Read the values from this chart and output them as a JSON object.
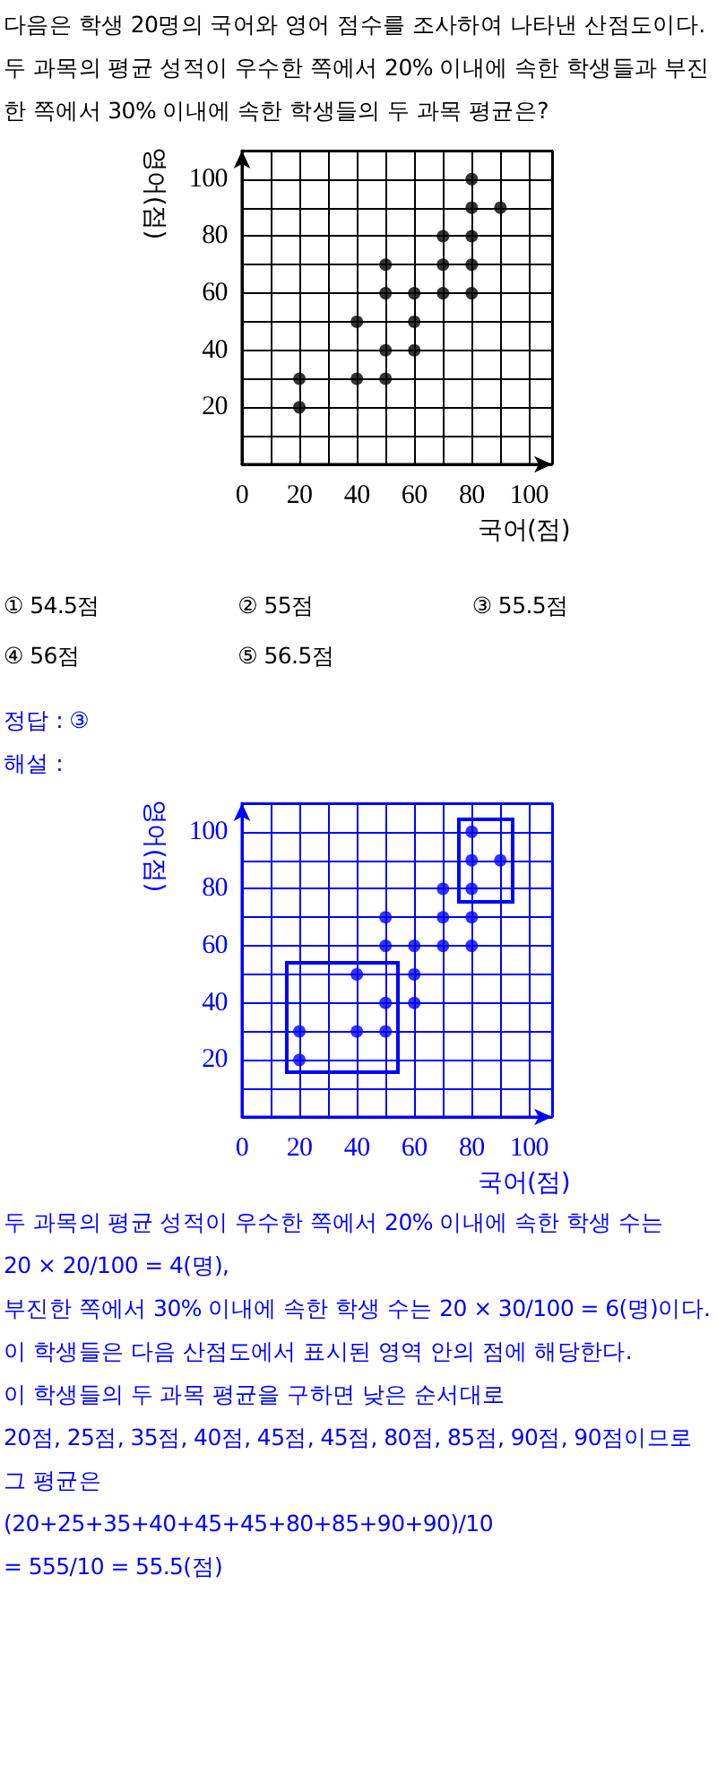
{
  "chart_data": [
    {
      "type": "scatter",
      "title": "다음은 학생 20명의 국어와 영어 점수를 조사하여 나타낸 산점도이다. 두 과목의 평균 성적이 우수한 쪽에서 20% 이내에 속한 학생들과 부진한 쪽에서 30% 이내에 속한 학생들의 두 과목 평균은?",
      "xlabel": "국어(점)",
      "ylabel": "영어(점)",
      "x": [
        20,
        20,
        40,
        40,
        50,
        50,
        50,
        50,
        60,
        60,
        60,
        70,
        70,
        70,
        80,
        80,
        80,
        80,
        80,
        90
      ],
      "values": [
        20,
        30,
        30,
        50,
        30,
        40,
        60,
        70,
        40,
        50,
        60,
        60,
        70,
        80,
        60,
        70,
        80,
        90,
        100,
        90
      ],
      "color": "#000000",
      "xlim": [
        0,
        108
      ],
      "ylim": [
        0,
        110
      ],
      "xticks": [
        {
          "value": 0,
          "label": "0"
        },
        {
          "value": 10,
          "label": null
        },
        20,
        {
          "value": 30,
          "label": null
        },
        40,
        {
          "value": 50,
          "label": null
        },
        60,
        {
          "value": 70,
          "label": null
        },
        80,
        {
          "value": 90,
          "label": null
        },
        100
      ],
      "yticks": [
        {
          "value": 0,
          "label": null
        },
        {
          "value": 10,
          "label": null
        },
        20,
        {
          "value": 30,
          "label": null
        },
        40,
        {
          "value": 50,
          "label": null
        },
        60,
        {
          "value": 70,
          "label": null
        },
        80,
        {
          "value": 90,
          "label": null
        },
        100
      ],
      "grid": true,
      "marker": "circle",
      "annotations": [
        "① 54.5점",
        "② 55점",
        "③ 55.5점",
        "④ 56점",
        "⑤ 56.5점"
      ]
    },
    {
      "type": "scatter",
      "title": "정답 : ③",
      "subtitle": "해설 :",
      "xlabel": "국어(점)",
      "ylabel": "영어(점)",
      "series": [
        {
          "color": "#0000ff",
          "x": [
            50,
            50,
            60,
            60,
            60,
            70,
            70,
            70,
            80,
            80
          ],
          "values": [
            60,
            70,
            40,
            50,
            60,
            60,
            70,
            80,
            60,
            70
          ]
        },
        {
          "color": "#0000ff",
          "x": [
            20,
            20,
            40,
            40,
            50,
            50
          ],
          "values": [
            20,
            30,
            30,
            50,
            30,
            40
          ]
        },
        {
          "color": "#0000ff",
          "x": [
            80,
            80,
            80,
            90
          ],
          "values": [
            80,
            90,
            100,
            90
          ]
        }
      ],
      "xlim": [
        0,
        108
      ],
      "ylim": [
        0,
        110
      ],
      "xticks": [
        {
          "value": 0,
          "label": "0"
        },
        {
          "value": 10,
          "label": null
        },
        20,
        {
          "value": 30,
          "label": null
        },
        40,
        {
          "value": 50,
          "label": null
        },
        60,
        {
          "value": 70,
          "label": null
        },
        80,
        {
          "value": 90,
          "label": null
        },
        100
      ],
      "yticks": [
        {
          "value": 0,
          "label": null
        },
        {
          "value": 10,
          "label": null
        },
        20,
        {
          "value": 30,
          "label": null
        },
        40,
        {
          "value": 50,
          "label": null
        },
        60,
        {
          "value": 70,
          "label": null
        },
        80,
        {
          "value": 90,
          "label": null
        },
        100
      ],
      "grid": true,
      "marker": "circle",
      "annotations": [
        "두 과목의 평균 성적이 우수한 쪽에서 20% 이내에 속한 학생 수는",
        "20 × 20/100 = 4(명),",
        "부진한 쪽에서 30% 이내에 속한 학생 수는 20 × 30/100 = 6(명)이다.",
        "이 학생들은 다음 산점도에서 표시된 영역 안의 점에 해당한다.",
        "이 학생들의 두 과목 평균을 구하면 낮은 순서대로",
        "20점, 25점, 35점, 40점, 45점, 45점, 80점, 85점, 90점, 90점이므로 그 평균은",
        "(20+25+35+40+45+45+80+85+90+90)/10",
        "= 555/10 = 55.5(점)"
      ]
    }
  ]
}
